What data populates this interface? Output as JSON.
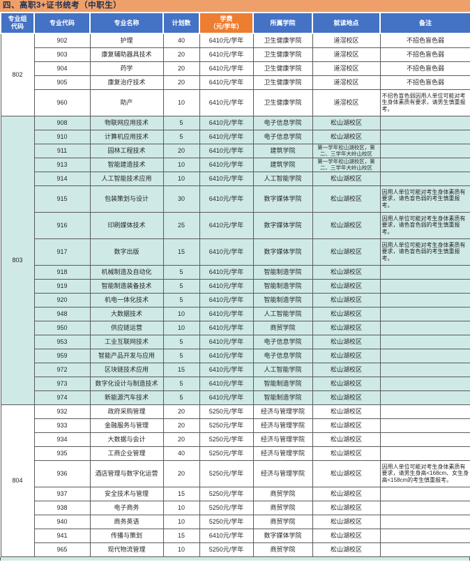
{
  "title": "四、高职3+证书统考（中职生）",
  "colors": {
    "title_bg": "#EFA06A",
    "title_text": "#20304F",
    "header_bg": "#4472C4",
    "tuition_header_bg": "#ED7D31",
    "header_text": "#FFFFFF",
    "highlight_row_bg": "#CFEAE6",
    "border": "#595959",
    "body_text": "#262626"
  },
  "table": {
    "headers": [
      "专业组\n代码",
      "专业代码",
      "专业名称",
      "计划数",
      "学费\n（元/学年）",
      "所属学院",
      "就读地点",
      "备注"
    ],
    "groups": [
      {
        "group_code": "802",
        "highlight": false,
        "rows": [
          {
            "code": "902",
            "major": "护理",
            "plan": "40",
            "tuition": "6410元/学年",
            "college": "卫生健康学院",
            "location": "道滘校区",
            "note": "不招色盲色弱",
            "tall": false
          },
          {
            "code": "903",
            "major": "康复辅助器具技术",
            "plan": "20",
            "tuition": "6410元/学年",
            "college": "卫生健康学院",
            "location": "道滘校区",
            "note": "不招色盲色弱",
            "tall": false
          },
          {
            "code": "904",
            "major": "药学",
            "plan": "20",
            "tuition": "6410元/学年",
            "college": "卫生健康学院",
            "location": "道滘校区",
            "note": "不招色盲色弱",
            "tall": false
          },
          {
            "code": "905",
            "major": "康复治疗技术",
            "plan": "20",
            "tuition": "6410元/学年",
            "college": "卫生健康学院",
            "location": "道滘校区",
            "note": "不招色盲色弱",
            "tall": false
          },
          {
            "code": "960",
            "major": "助产",
            "plan": "10",
            "tuition": "6410元/学年",
            "college": "卫生健康学院",
            "location": "道滘校区",
            "note": "不招色盲色弱因用人单位可能对考生身体素质有要求，请男生慎重报考。",
            "tall": true
          }
        ]
      },
      {
        "group_code": "803",
        "highlight": true,
        "rows": [
          {
            "code": "908",
            "major": "物联网应用技术",
            "plan": "5",
            "tuition": "6410元/学年",
            "college": "电子信息学院",
            "location": "松山湖校区",
            "note": "",
            "tall": false
          },
          {
            "code": "910",
            "major": "计算机应用技术",
            "plan": "5",
            "tuition": "6410元/学年",
            "college": "电子信息学院",
            "location": "松山湖校区",
            "note": "",
            "tall": false
          },
          {
            "code": "911",
            "major": "园林工程技术",
            "plan": "20",
            "tuition": "6410元/学年",
            "college": "建筑学院",
            "location": "第一学年松山湖校区，第二、三学年大岭山校区",
            "note": "",
            "tall": false
          },
          {
            "code": "913",
            "major": "智能建造技术",
            "plan": "10",
            "tuition": "6410元/学年",
            "college": "建筑学院",
            "location": "第一学年松山湖校区，第二、三学年大岭山校区",
            "note": "",
            "tall": false
          },
          {
            "code": "914",
            "major": "人工智能技术应用",
            "plan": "10",
            "tuition": "6410元/学年",
            "college": "人工智能学院",
            "location": "松山湖校区",
            "note": "",
            "tall": false
          },
          {
            "code": "915",
            "major": "包装策划与设计",
            "plan": "30",
            "tuition": "6410元/学年",
            "college": "数字媒体学院",
            "location": "松山湖校区",
            "note": "因用人单位可能对考生身体素质有要求，请色盲色弱的考生慎重报考。",
            "tall": true
          },
          {
            "code": "916",
            "major": "印刷媒体技术",
            "plan": "25",
            "tuition": "6410元/学年",
            "college": "数字媒体学院",
            "location": "松山湖校区",
            "note": "因用人单位可能对考生身体素质有要求，请色盲色弱的考生慎重报考。",
            "tall": true
          },
          {
            "code": "917",
            "major": "数字出版",
            "plan": "15",
            "tuition": "6410元/学年",
            "college": "数字媒体学院",
            "location": "松山湖校区",
            "note": "因用人单位可能对考生身体素质有要求，请色盲色弱的考生慎重报考。",
            "tall": true
          },
          {
            "code": "918",
            "major": "机械制造及自动化",
            "plan": "5",
            "tuition": "6410元/学年",
            "college": "智能制造学院",
            "location": "松山湖校区",
            "note": "",
            "tall": false
          },
          {
            "code": "919",
            "major": "智能制造装备技术",
            "plan": "5",
            "tuition": "6410元/学年",
            "college": "智能制造学院",
            "location": "松山湖校区",
            "note": "",
            "tall": false
          },
          {
            "code": "920",
            "major": "机电一体化技术",
            "plan": "5",
            "tuition": "6410元/学年",
            "college": "智能制造学院",
            "location": "松山湖校区",
            "note": "",
            "tall": false
          },
          {
            "code": "948",
            "major": "大数据技术",
            "plan": "10",
            "tuition": "6410元/学年",
            "college": "人工智能学院",
            "location": "松山湖校区",
            "note": "",
            "tall": false
          },
          {
            "code": "950",
            "major": "供应链运营",
            "plan": "10",
            "tuition": "6410元/学年",
            "college": "商贸学院",
            "location": "松山湖校区",
            "note": "",
            "tall": false
          },
          {
            "code": "953",
            "major": "工业互联网技术",
            "plan": "5",
            "tuition": "6410元/学年",
            "college": "电子信息学院",
            "location": "松山湖校区",
            "note": "",
            "tall": false
          },
          {
            "code": "959",
            "major": "智能产品开发与应用",
            "plan": "5",
            "tuition": "6410元/学年",
            "college": "电子信息学院",
            "location": "松山湖校区",
            "note": "",
            "tall": false
          },
          {
            "code": "972",
            "major": "区块链技术应用",
            "plan": "15",
            "tuition": "6410元/学年",
            "college": "人工智能学院",
            "location": "松山湖校区",
            "note": "",
            "tall": false
          },
          {
            "code": "973",
            "major": "数字化设计与制造技术",
            "plan": "5",
            "tuition": "6410元/学年",
            "college": "智能制造学院",
            "location": "松山湖校区",
            "note": "",
            "tall": false
          },
          {
            "code": "974",
            "major": "新能源汽车技术",
            "plan": "5",
            "tuition": "6410元/学年",
            "college": "智能制造学院",
            "location": "松山湖校区",
            "note": "",
            "tall": false
          }
        ]
      },
      {
        "group_code": "804",
        "highlight": false,
        "rows": [
          {
            "code": "932",
            "major": "政府采购管理",
            "plan": "20",
            "tuition": "5250元/学年",
            "college": "经济与管理学院",
            "location": "松山湖校区",
            "note": "",
            "tall": false
          },
          {
            "code": "933",
            "major": "金融服务与管理",
            "plan": "20",
            "tuition": "5250元/学年",
            "college": "经济与管理学院",
            "location": "松山湖校区",
            "note": "",
            "tall": false
          },
          {
            "code": "934",
            "major": "大数据与会计",
            "plan": "20",
            "tuition": "5250元/学年",
            "college": "经济与管理学院",
            "location": "松山湖校区",
            "note": "",
            "tall": false
          },
          {
            "code": "935",
            "major": "工商企业管理",
            "plan": "40",
            "tuition": "5250元/学年",
            "college": "经济与管理学院",
            "location": "松山湖校区",
            "note": "",
            "tall": false
          },
          {
            "code": "936",
            "major": "酒店管理与数字化运营",
            "plan": "20",
            "tuition": "5250元/学年",
            "college": "经济与管理学院",
            "location": "松山湖校区",
            "note": "因用人单位可能对考生身体素质有要求，请男生身高<168cm、女生身高<158cm的考生慎重报考。",
            "tall": true
          },
          {
            "code": "937",
            "major": "安全技术与管理",
            "plan": "15",
            "tuition": "5250元/学年",
            "college": "商贸学院",
            "location": "松山湖校区",
            "note": "",
            "tall": false
          },
          {
            "code": "938",
            "major": "电子商务",
            "plan": "10",
            "tuition": "5250元/学年",
            "college": "商贸学院",
            "location": "松山湖校区",
            "note": "",
            "tall": false
          },
          {
            "code": "940",
            "major": "商务英语",
            "plan": "10",
            "tuition": "5250元/学年",
            "college": "商贸学院",
            "location": "松山湖校区",
            "note": "",
            "tall": false
          },
          {
            "code": "941",
            "major": "传播与策划",
            "plan": "15",
            "tuition": "6410元/学年",
            "college": "数字媒体学院",
            "location": "松山湖校区",
            "note": "",
            "tall": false
          },
          {
            "code": "965",
            "major": "现代物流管理",
            "plan": "10",
            "tuition": "5250元/学年",
            "college": "商贸学院",
            "location": "松山湖校区",
            "note": "",
            "tall": false
          }
        ]
      }
    ]
  }
}
